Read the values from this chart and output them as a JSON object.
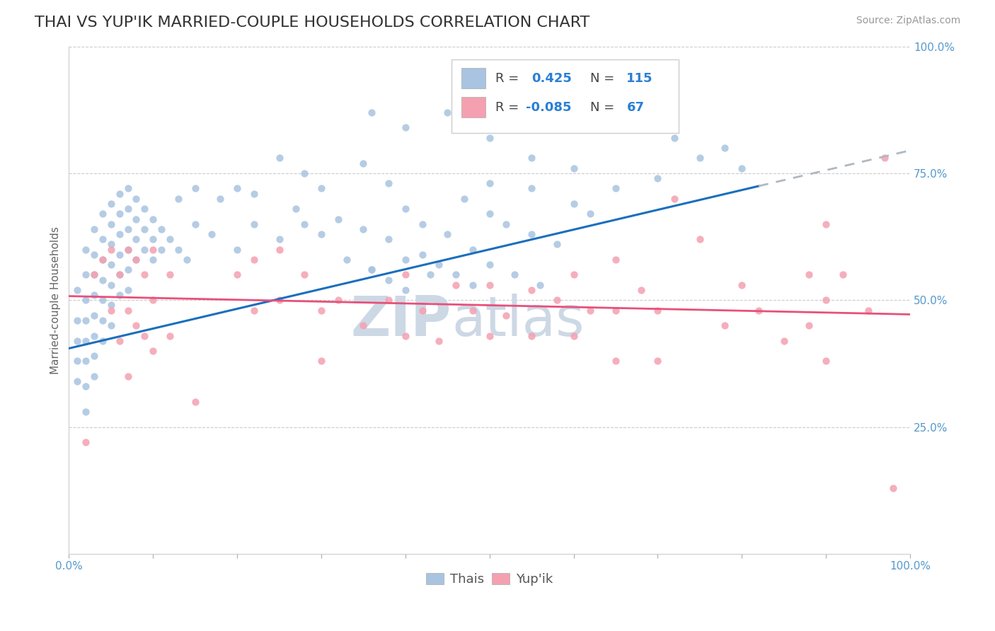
{
  "title": "THAI VS YUP'IK MARRIED-COUPLE HOUSEHOLDS CORRELATION CHART",
  "source": "Source: ZipAtlas.com",
  "ylabel": "Married-couple Households",
  "ylabel_right_ticks": [
    "100.0%",
    "75.0%",
    "50.0%",
    "25.0%"
  ],
  "ylabel_right_vals": [
    1.0,
    0.75,
    0.5,
    0.25
  ],
  "xmin": 0.0,
  "xmax": 1.0,
  "ymin": 0.0,
  "ymax": 1.0,
  "thai_color": "#a8c4e0",
  "yupik_color": "#f4a0b0",
  "trend_thai_color": "#1a6fbd",
  "trend_yupik_color": "#e8507a",
  "trend_ext_color": "#b0b8c0",
  "background_color": "#ffffff",
  "title_fontsize": 16,
  "axis_label_fontsize": 11,
  "tick_fontsize": 11,
  "source_fontsize": 10,
  "thai_points": [
    [
      0.01,
      0.52
    ],
    [
      0.01,
      0.46
    ],
    [
      0.01,
      0.42
    ],
    [
      0.01,
      0.38
    ],
    [
      0.01,
      0.34
    ],
    [
      0.02,
      0.6
    ],
    [
      0.02,
      0.55
    ],
    [
      0.02,
      0.5
    ],
    [
      0.02,
      0.46
    ],
    [
      0.02,
      0.42
    ],
    [
      0.02,
      0.38
    ],
    [
      0.02,
      0.33
    ],
    [
      0.02,
      0.28
    ],
    [
      0.03,
      0.64
    ],
    [
      0.03,
      0.59
    ],
    [
      0.03,
      0.55
    ],
    [
      0.03,
      0.51
    ],
    [
      0.03,
      0.47
    ],
    [
      0.03,
      0.43
    ],
    [
      0.03,
      0.39
    ],
    [
      0.03,
      0.35
    ],
    [
      0.04,
      0.67
    ],
    [
      0.04,
      0.62
    ],
    [
      0.04,
      0.58
    ],
    [
      0.04,
      0.54
    ],
    [
      0.04,
      0.5
    ],
    [
      0.04,
      0.46
    ],
    [
      0.04,
      0.42
    ],
    [
      0.05,
      0.69
    ],
    [
      0.05,
      0.65
    ],
    [
      0.05,
      0.61
    ],
    [
      0.05,
      0.57
    ],
    [
      0.05,
      0.53
    ],
    [
      0.05,
      0.49
    ],
    [
      0.05,
      0.45
    ],
    [
      0.06,
      0.71
    ],
    [
      0.06,
      0.67
    ],
    [
      0.06,
      0.63
    ],
    [
      0.06,
      0.59
    ],
    [
      0.06,
      0.55
    ],
    [
      0.06,
      0.51
    ],
    [
      0.07,
      0.72
    ],
    [
      0.07,
      0.68
    ],
    [
      0.07,
      0.64
    ],
    [
      0.07,
      0.6
    ],
    [
      0.07,
      0.56
    ],
    [
      0.07,
      0.52
    ],
    [
      0.08,
      0.7
    ],
    [
      0.08,
      0.66
    ],
    [
      0.08,
      0.62
    ],
    [
      0.08,
      0.58
    ],
    [
      0.09,
      0.68
    ],
    [
      0.09,
      0.64
    ],
    [
      0.09,
      0.6
    ],
    [
      0.1,
      0.66
    ],
    [
      0.1,
      0.62
    ],
    [
      0.1,
      0.58
    ],
    [
      0.11,
      0.64
    ],
    [
      0.11,
      0.6
    ],
    [
      0.12,
      0.62
    ],
    [
      0.13,
      0.6
    ],
    [
      0.14,
      0.58
    ],
    [
      0.15,
      0.65
    ],
    [
      0.17,
      0.63
    ],
    [
      0.2,
      0.6
    ],
    [
      0.22,
      0.65
    ],
    [
      0.25,
      0.62
    ],
    [
      0.27,
      0.68
    ],
    [
      0.28,
      0.65
    ],
    [
      0.3,
      0.63
    ],
    [
      0.32,
      0.66
    ],
    [
      0.33,
      0.58
    ],
    [
      0.35,
      0.64
    ],
    [
      0.36,
      0.56
    ],
    [
      0.38,
      0.62
    ],
    [
      0.4,
      0.68
    ],
    [
      0.4,
      0.58
    ],
    [
      0.42,
      0.65
    ],
    [
      0.43,
      0.55
    ],
    [
      0.45,
      0.63
    ],
    [
      0.47,
      0.7
    ],
    [
      0.48,
      0.6
    ],
    [
      0.5,
      0.67
    ],
    [
      0.5,
      0.57
    ],
    [
      0.52,
      0.65
    ],
    [
      0.53,
      0.55
    ],
    [
      0.55,
      0.63
    ],
    [
      0.56,
      0.53
    ],
    [
      0.58,
      0.61
    ],
    [
      0.6,
      0.69
    ],
    [
      0.62,
      0.67
    ],
    [
      0.65,
      0.72
    ],
    [
      0.7,
      0.74
    ],
    [
      0.72,
      0.82
    ],
    [
      0.75,
      0.78
    ],
    [
      0.78,
      0.8
    ],
    [
      0.8,
      0.76
    ],
    [
      0.36,
      0.87
    ],
    [
      0.4,
      0.84
    ],
    [
      0.45,
      0.87
    ],
    [
      0.5,
      0.73
    ],
    [
      0.55,
      0.72
    ],
    [
      0.6,
      0.76
    ],
    [
      0.35,
      0.77
    ],
    [
      0.38,
      0.73
    ],
    [
      0.25,
      0.78
    ],
    [
      0.28,
      0.75
    ],
    [
      0.3,
      0.72
    ],
    [
      0.5,
      0.82
    ],
    [
      0.55,
      0.78
    ],
    [
      0.22,
      0.71
    ],
    [
      0.2,
      0.72
    ],
    [
      0.18,
      0.7
    ],
    [
      0.15,
      0.72
    ],
    [
      0.13,
      0.7
    ],
    [
      0.48,
      0.53
    ],
    [
      0.46,
      0.55
    ],
    [
      0.44,
      0.57
    ],
    [
      0.42,
      0.59
    ],
    [
      0.4,
      0.52
    ],
    [
      0.38,
      0.54
    ],
    [
      0.36,
      0.56
    ]
  ],
  "yupik_points": [
    [
      0.02,
      0.22
    ],
    [
      0.03,
      0.55
    ],
    [
      0.04,
      0.58
    ],
    [
      0.05,
      0.6
    ],
    [
      0.05,
      0.48
    ],
    [
      0.06,
      0.55
    ],
    [
      0.06,
      0.42
    ],
    [
      0.07,
      0.6
    ],
    [
      0.07,
      0.48
    ],
    [
      0.07,
      0.35
    ],
    [
      0.08,
      0.58
    ],
    [
      0.08,
      0.45
    ],
    [
      0.09,
      0.55
    ],
    [
      0.09,
      0.43
    ],
    [
      0.1,
      0.6
    ],
    [
      0.1,
      0.5
    ],
    [
      0.1,
      0.4
    ],
    [
      0.12,
      0.55
    ],
    [
      0.12,
      0.43
    ],
    [
      0.15,
      0.3
    ],
    [
      0.2,
      0.55
    ],
    [
      0.22,
      0.58
    ],
    [
      0.22,
      0.48
    ],
    [
      0.25,
      0.6
    ],
    [
      0.25,
      0.5
    ],
    [
      0.28,
      0.55
    ],
    [
      0.3,
      0.48
    ],
    [
      0.3,
      0.38
    ],
    [
      0.32,
      0.5
    ],
    [
      0.35,
      0.45
    ],
    [
      0.38,
      0.5
    ],
    [
      0.4,
      0.55
    ],
    [
      0.4,
      0.43
    ],
    [
      0.42,
      0.48
    ],
    [
      0.44,
      0.42
    ],
    [
      0.46,
      0.53
    ],
    [
      0.48,
      0.48
    ],
    [
      0.5,
      0.53
    ],
    [
      0.5,
      0.43
    ],
    [
      0.52,
      0.47
    ],
    [
      0.55,
      0.52
    ],
    [
      0.55,
      0.43
    ],
    [
      0.58,
      0.5
    ],
    [
      0.6,
      0.55
    ],
    [
      0.6,
      0.43
    ],
    [
      0.62,
      0.48
    ],
    [
      0.65,
      0.58
    ],
    [
      0.65,
      0.48
    ],
    [
      0.65,
      0.38
    ],
    [
      0.68,
      0.52
    ],
    [
      0.7,
      0.48
    ],
    [
      0.7,
      0.38
    ],
    [
      0.72,
      0.7
    ],
    [
      0.75,
      0.62
    ],
    [
      0.78,
      0.45
    ],
    [
      0.8,
      0.53
    ],
    [
      0.82,
      0.48
    ],
    [
      0.85,
      0.42
    ],
    [
      0.88,
      0.55
    ],
    [
      0.88,
      0.45
    ],
    [
      0.9,
      0.65
    ],
    [
      0.9,
      0.5
    ],
    [
      0.9,
      0.38
    ],
    [
      0.92,
      0.55
    ],
    [
      0.95,
      0.48
    ],
    [
      0.97,
      0.78
    ],
    [
      0.98,
      0.13
    ]
  ]
}
